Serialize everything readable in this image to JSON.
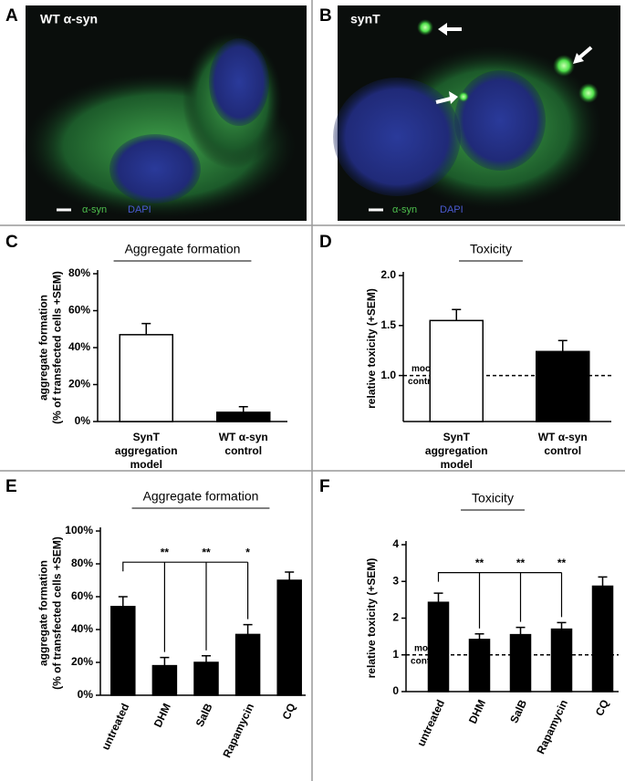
{
  "images": [
    {
      "panel": "A",
      "label": "WT α-syn",
      "legend": [
        "α-syn",
        "DAPI"
      ]
    },
    {
      "panel": "B",
      "label": "synT",
      "legend": [
        "α-syn",
        "DAPI"
      ]
    }
  ],
  "chart_data": [
    {
      "type": "bar",
      "panel": "C",
      "title": "Aggregate formation",
      "y_label": [
        "aggregate    formation",
        "(% of transfected cells +SEM)"
      ],
      "categories": [
        [
          "SynT",
          "aggregation",
          "model"
        ],
        [
          "WT α-syn",
          "control"
        ]
      ],
      "values": [
        47,
        5
      ],
      "errors": [
        6,
        3
      ],
      "colors": [
        "#ffffff",
        "#000000"
      ],
      "ylim": [
        0,
        80
      ],
      "yticks": [
        {
          "value": 0,
          "label": "0%"
        },
        {
          "value": 20,
          "label": "20%"
        },
        {
          "value": 40,
          "label": "40%"
        },
        {
          "value": 60,
          "label": "60%"
        },
        {
          "value": 80,
          "label": "80%"
        }
      ]
    },
    {
      "type": "bar",
      "panel": "D",
      "title": "Toxicity",
      "y_label": [
        "relative toxicity (+SEM)"
      ],
      "categories": [
        [
          "SynT",
          "aggregation",
          "model"
        ],
        [
          "WT α-syn",
          "control"
        ]
      ],
      "values": [
        1.55,
        1.24
      ],
      "errors": [
        0.11,
        0.11
      ],
      "colors": [
        "#ffffff",
        "#000000"
      ],
      "ylim": [
        0.54,
        2.0
      ],
      "yticks": [
        {
          "value": 1,
          "label": "1.0"
        },
        {
          "value": 1.5,
          "label": "1.5"
        },
        {
          "value": 2,
          "label": "2.0"
        }
      ],
      "reference": {
        "value": 1,
        "label": [
          "mock",
          "control"
        ]
      }
    },
    {
      "type": "bar",
      "panel": "E",
      "title": "Aggregate formation",
      "y_label": [
        "aggregate    formation",
        "(% of transfected cells +SEM)"
      ],
      "categories": [
        "untreated",
        "DHM",
        "SalB",
        "Rapamycin",
        "CQ"
      ],
      "values": [
        54,
        18,
        20,
        37,
        70
      ],
      "errors": [
        6,
        5,
        4,
        6,
        5
      ],
      "color": "#000000",
      "ylim": [
        0,
        100
      ],
      "yticks": [
        {
          "value": 0,
          "label": "0%"
        },
        {
          "value": 20,
          "label": "20%"
        },
        {
          "value": 40,
          "label": "40%"
        },
        {
          "value": 60,
          "label": "60%"
        },
        {
          "value": 80,
          "label": "80%"
        },
        {
          "value": 100,
          "label": "100%"
        }
      ],
      "significance": {
        "reference": "untreated",
        "marks": [
          {
            "category": "DHM",
            "label": "**"
          },
          {
            "category": "SalB",
            "label": "**"
          },
          {
            "category": "Rapamycin",
            "label": "*"
          }
        ]
      }
    },
    {
      "type": "bar",
      "panel": "F",
      "title": "Toxicity",
      "y_label": [
        "relative toxicity (+SEM)"
      ],
      "categories": [
        "untreated",
        "DHM",
        "SalB",
        "Rapamycin",
        "CQ"
      ],
      "values": [
        2.43,
        1.42,
        1.55,
        1.7,
        2.87
      ],
      "errors": [
        0.25,
        0.15,
        0.2,
        0.18,
        0.25
      ],
      "color": "#000000",
      "ylim": [
        0,
        4
      ],
      "yticks": [
        0,
        1,
        2,
        3,
        4
      ],
      "reference": {
        "value": 1,
        "label": [
          "mock",
          "control"
        ]
      },
      "significance": {
        "reference": "untreated",
        "marks": [
          {
            "category": "DHM",
            "label": "**"
          },
          {
            "category": "SalB",
            "label": "**"
          },
          {
            "category": "Rapamycin",
            "label": "**"
          }
        ]
      }
    }
  ]
}
